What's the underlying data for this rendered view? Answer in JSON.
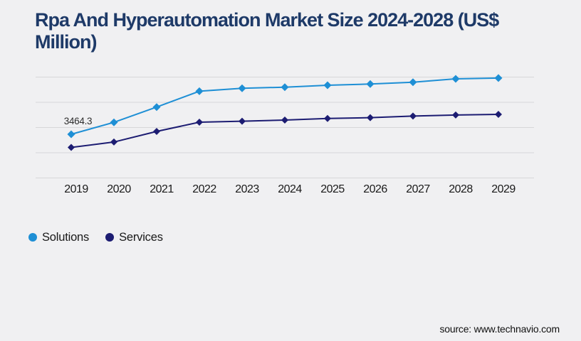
{
  "page": {
    "background_color": "#f0f0f2",
    "title": "Rpa And Hyperautomation Market Size 2024-2028 (US$ Million)",
    "source_text": "source: www.technavio.com"
  },
  "colors": {
    "title": "#1e3a68",
    "gridline": "#d6d6d9",
    "axis_label": "#1a1a1a",
    "legend_label": "#1a1a1a",
    "source_text": "#111111",
    "data_label": "#2e2e2e",
    "solutions": "#1e8fd5",
    "services": "#1c1c72"
  },
  "chart_data": {
    "type": "line",
    "title": "Rpa And Hyperautomation Market Size 2024-2028 (US$ Million)",
    "categories": [
      "2019",
      "2020",
      "2021",
      "2022",
      "2023",
      "2024",
      "2025",
      "2026",
      "2027",
      "2028",
      "2029"
    ],
    "series": [
      {
        "name": "Solutions",
        "color": "#1e8fd5",
        "marker": "diamond",
        "values": [
          3464.3,
          4410,
          5620,
          6880,
          7110,
          7200,
          7350,
          7450,
          7590,
          7860,
          7920
        ]
      },
      {
        "name": "Services",
        "color": "#1c1c72",
        "marker": "diamond",
        "values": [
          2420,
          2850,
          3690,
          4420,
          4500,
          4590,
          4720,
          4780,
          4910,
          4990,
          5040
        ]
      }
    ],
    "data_labels": [
      {
        "series": "Solutions",
        "category": "2019",
        "text": "3464.3"
      }
    ],
    "xlabel": "",
    "ylabel": "",
    "ylim": [
      0,
      8000
    ],
    "gridline_values": [
      0,
      2000,
      4000,
      6000,
      8000
    ],
    "grid": true,
    "y_axis_tick_labels_visible": false,
    "legend_position": "bottom-left"
  },
  "legend": {
    "items": [
      {
        "label": "Solutions",
        "color": "#1e8fd5"
      },
      {
        "label": "Services",
        "color": "#1c1c72"
      }
    ]
  }
}
